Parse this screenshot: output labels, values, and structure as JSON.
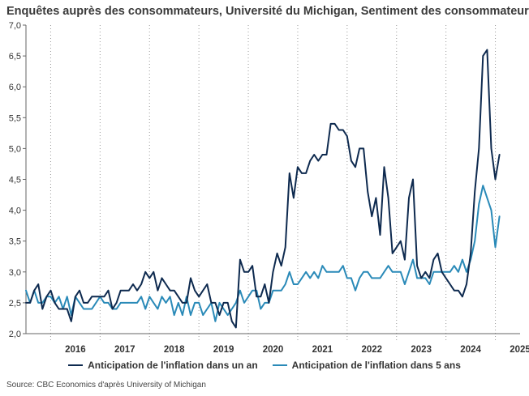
{
  "title": "Enquêtes auprès des consommateurs, Université du Michigan, Sentiment des consommateurs",
  "source": "Source: CBC Economics d'après University of Michigan",
  "colors": {
    "series_1y": "#0e2a4f",
    "series_5y": "#2a8ab8",
    "grid": "#9a9a9a",
    "axis": "#666666"
  },
  "chart_data": {
    "type": "line",
    "title": "Enquêtes auprès des consommateurs, Université du Michigan, Sentiment des consommateurs",
    "xlabel": "",
    "ylabel": "",
    "ylim": [
      2.0,
      7.0
    ],
    "xlim": [
      "2015-07",
      "2025-06"
    ],
    "y_ticks": [
      "2,0",
      "2,5",
      "3,0",
      "3,5",
      "4,0",
      "4,5",
      "5,0",
      "5,5",
      "6,0",
      "6,5",
      "7,0"
    ],
    "y_tick_values": [
      2.0,
      2.5,
      3.0,
      3.5,
      4.0,
      4.5,
      5.0,
      5.5,
      6.0,
      6.5,
      7.0
    ],
    "x_ticks": [
      "2016",
      "2017",
      "2018",
      "2019",
      "2020",
      "2021",
      "2022",
      "2023",
      "2024",
      "2025"
    ],
    "grid": "vertical dotted at year boundaries",
    "legend_position": "bottom",
    "x_start": "2015-07",
    "series": [
      {
        "name": "Anticipation de l'inflation dans un an",
        "values": [
          2.5,
          2.5,
          2.7,
          2.8,
          2.4,
          2.6,
          2.7,
          2.5,
          2.4,
          2.4,
          2.4,
          2.2,
          2.6,
          2.7,
          2.5,
          2.5,
          2.6,
          2.6,
          2.6,
          2.6,
          2.7,
          2.4,
          2.5,
          2.7,
          2.7,
          2.7,
          2.8,
          2.7,
          2.8,
          3.0,
          2.9,
          3.0,
          2.7,
          2.9,
          2.8,
          2.7,
          2.7,
          2.6,
          2.5,
          2.5,
          2.9,
          2.7,
          2.6,
          2.7,
          2.8,
          2.5,
          2.5,
          2.3,
          2.5,
          2.5,
          2.2,
          2.1,
          3.2,
          3.0,
          3.0,
          3.1,
          2.6,
          2.6,
          2.8,
          2.5,
          3.0,
          3.3,
          3.1,
          3.4,
          4.6,
          4.2,
          4.7,
          4.6,
          4.6,
          4.8,
          4.9,
          4.8,
          4.9,
          4.9,
          5.4,
          5.4,
          5.3,
          5.3,
          5.2,
          4.8,
          4.7,
          5.0,
          5.0,
          4.3,
          3.9,
          4.2,
          3.6,
          4.7,
          4.2,
          3.3,
          3.4,
          3.5,
          3.2,
          4.2,
          4.5,
          3.1,
          2.9,
          3.0,
          2.9,
          3.2,
          3.3,
          3.0,
          2.9,
          2.8,
          2.7,
          2.7,
          2.6,
          2.8,
          3.3,
          4.3,
          5.0,
          6.5,
          6.6,
          5.0,
          4.5,
          4.9
        ]
      },
      {
        "name": "Anticipation de l'inflation dans 5 ans",
        "values": [
          2.7,
          2.5,
          2.7,
          2.5,
          2.5,
          2.6,
          2.6,
          2.5,
          2.6,
          2.4,
          2.6,
          2.3,
          2.6,
          2.5,
          2.4,
          2.4,
          2.4,
          2.5,
          2.6,
          2.5,
          2.5,
          2.4,
          2.4,
          2.5,
          2.5,
          2.5,
          2.5,
          2.5,
          2.6,
          2.4,
          2.6,
          2.5,
          2.4,
          2.6,
          2.5,
          2.6,
          2.3,
          2.5,
          2.3,
          2.6,
          2.3,
          2.5,
          2.5,
          2.3,
          2.4,
          2.5,
          2.2,
          2.5,
          2.4,
          2.3,
          2.4,
          2.5,
          2.7,
          2.5,
          2.6,
          2.7,
          2.7,
          2.4,
          2.5,
          2.5,
          2.7,
          2.7,
          2.7,
          2.8,
          3.0,
          2.8,
          2.8,
          2.9,
          3.0,
          2.9,
          3.0,
          2.9,
          3.1,
          3.0,
          3.0,
          3.0,
          3.0,
          3.1,
          2.9,
          2.9,
          2.7,
          2.9,
          3.0,
          3.0,
          2.9,
          2.9,
          2.9,
          3.0,
          3.1,
          3.0,
          3.0,
          3.0,
          2.8,
          3.0,
          3.2,
          2.9,
          2.9,
          2.9,
          2.8,
          3.0,
          3.0,
          3.0,
          3.0,
          3.0,
          3.1,
          3.0,
          3.2,
          3.0,
          3.2,
          3.5,
          4.1,
          4.4,
          4.2,
          4.0,
          3.4,
          3.9
        ]
      }
    ]
  }
}
